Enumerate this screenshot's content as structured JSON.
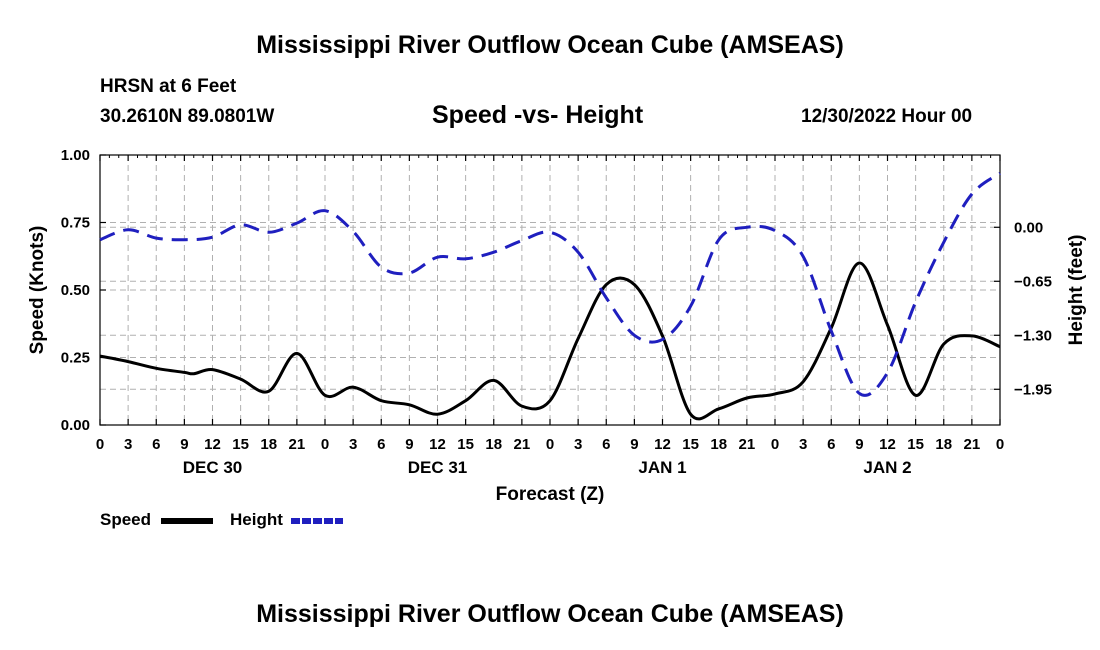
{
  "page": {
    "title": "Mississippi River Outflow Ocean Cube (AMSEAS)",
    "footer_title": "Mississippi River Outflow Ocean Cube (AMSEAS)",
    "station_name": "HRSN at 6 Feet",
    "station_coords": "30.2610N  89.0801W",
    "chart_title": "Speed -vs- Height",
    "run_time": "12/30/2022 Hour 00"
  },
  "legend": {
    "speed_label": "Speed",
    "height_label": "Height"
  },
  "colors": {
    "speed": "#000000",
    "height": "#1f1fbf",
    "grid": "#b0b0b0"
  },
  "chart_data": {
    "type": "line",
    "title": "Speed -vs- Height",
    "xlabel": "Forecast (Z)",
    "ylabel": "Speed (Knots)",
    "y2label": "Height (feet)",
    "x_range": [
      0,
      96
    ],
    "ylim": [
      0,
      1.0
    ],
    "y2lim": [
      -2.38,
      0.87
    ],
    "y_ticks": [
      0.0,
      0.25,
      0.5,
      0.75,
      1.0
    ],
    "y_tick_labels": [
      "0.00",
      "0.25",
      "0.50",
      "0.75",
      "1.00"
    ],
    "y2_ticks": [
      0.0,
      -0.65,
      -1.3,
      -1.95
    ],
    "y2_tick_labels": [
      "0.00",
      "−0.65",
      "−1.30",
      "−1.95"
    ],
    "x_ticks": [
      0,
      3,
      6,
      9,
      12,
      15,
      18,
      21,
      24,
      27,
      30,
      33,
      36,
      39,
      42,
      45,
      48,
      51,
      54,
      57,
      60,
      63,
      66,
      69,
      72,
      75,
      78,
      81,
      84,
      87,
      90,
      93,
      96
    ],
    "x_tick_labels": [
      "0",
      "3",
      "6",
      "9",
      "12",
      "15",
      "18",
      "21",
      "0",
      "3",
      "6",
      "9",
      "12",
      "15",
      "18",
      "21",
      "0",
      "3",
      "6",
      "9",
      "12",
      "15",
      "18",
      "21",
      "0",
      "3",
      "6",
      "9",
      "12",
      "15",
      "18",
      "21",
      "0"
    ],
    "day_labels": [
      {
        "label": "DEC 30",
        "x": 12
      },
      {
        "label": "DEC 31",
        "x": 36
      },
      {
        "label": "JAN 1",
        "x": 60
      },
      {
        "label": "JAN 2",
        "x": 84
      }
    ],
    "grid": true,
    "series": [
      {
        "name": "Speed",
        "axis": "left",
        "style": "solid",
        "x": [
          0,
          3,
          6,
          9,
          10,
          12,
          15,
          18,
          21,
          24,
          27,
          30,
          33,
          36,
          39,
          42,
          45,
          48,
          51,
          54,
          57,
          60,
          63,
          66,
          69,
          72,
          75,
          78,
          81,
          84,
          87,
          90,
          93,
          96
        ],
        "values": [
          0.255,
          0.235,
          0.21,
          0.195,
          0.19,
          0.205,
          0.17,
          0.125,
          0.265,
          0.11,
          0.14,
          0.09,
          0.075,
          0.04,
          0.09,
          0.165,
          0.07,
          0.09,
          0.32,
          0.52,
          0.52,
          0.33,
          0.04,
          0.06,
          0.1,
          0.115,
          0.16,
          0.36,
          0.6,
          0.37,
          0.11,
          0.3,
          0.33,
          0.29
        ]
      },
      {
        "name": "Height",
        "axis": "right",
        "style": "dashed",
        "x": [
          0,
          3,
          6,
          9,
          12,
          15,
          18,
          21,
          24,
          27,
          30,
          33,
          36,
          39,
          42,
          45,
          48,
          51,
          54,
          57,
          60,
          63,
          66,
          69,
          72,
          75,
          78,
          81,
          84,
          87,
          90,
          93,
          96
        ],
        "values": [
          -0.15,
          -0.03,
          -0.13,
          -0.15,
          -0.12,
          0.03,
          -0.06,
          0.05,
          0.2,
          -0.05,
          -0.48,
          -0.55,
          -0.36,
          -0.38,
          -0.3,
          -0.16,
          -0.06,
          -0.3,
          -0.85,
          -1.3,
          -1.35,
          -0.95,
          -0.15,
          0.0,
          -0.04,
          -0.35,
          -1.25,
          -2.0,
          -1.75,
          -0.9,
          -0.18,
          0.4,
          0.65
        ]
      }
    ]
  }
}
